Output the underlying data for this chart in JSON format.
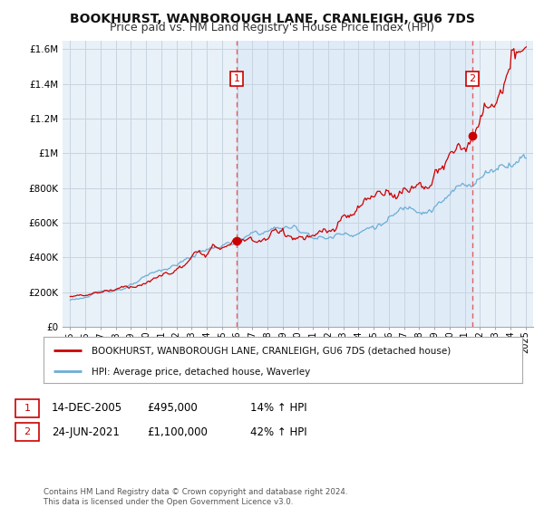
{
  "title": "BOOKHURST, WANBOROUGH LANE, CRANLEIGH, GU6 7DS",
  "subtitle": "Price paid vs. HM Land Registry's House Price Index (HPI)",
  "legend_line1": "BOOKHURST, WANBOROUGH LANE, CRANLEIGH, GU6 7DS (detached house)",
  "legend_line2": "HPI: Average price, detached house, Waverley",
  "annotation1_date": "14-DEC-2005",
  "annotation1_price": "£495,000",
  "annotation1_hpi": "14% ↑ HPI",
  "annotation1_year": 2005.96,
  "annotation1_value": 495000,
  "annotation2_date": "24-JUN-2021",
  "annotation2_price": "£1,100,000",
  "annotation2_hpi": "42% ↑ HPI",
  "annotation2_year": 2021.48,
  "annotation2_value": 1100000,
  "ylabel_ticks": [
    "£0",
    "£200K",
    "£400K",
    "£600K",
    "£800K",
    "£1M",
    "£1.2M",
    "£1.4M",
    "£1.6M"
  ],
  "ylabel_values": [
    0,
    200000,
    400000,
    600000,
    800000,
    1000000,
    1200000,
    1400000,
    1600000
  ],
  "ylim": [
    0,
    1650000
  ],
  "xlim_start": 1994.5,
  "xlim_end": 2025.5,
  "background_color": "#ffffff",
  "chart_bg_color": "#e8f0f8",
  "grid_color": "#c8d4e0",
  "hpi_line_color": "#6baed6",
  "price_line_color": "#cc0000",
  "vline_color": "#e06060",
  "shade_color": "#dce8f4",
  "title_fontsize": 10,
  "subtitle_fontsize": 9,
  "footer_text": "Contains HM Land Registry data © Crown copyright and database right 2024.\nThis data is licensed under the Open Government Licence v3.0."
}
